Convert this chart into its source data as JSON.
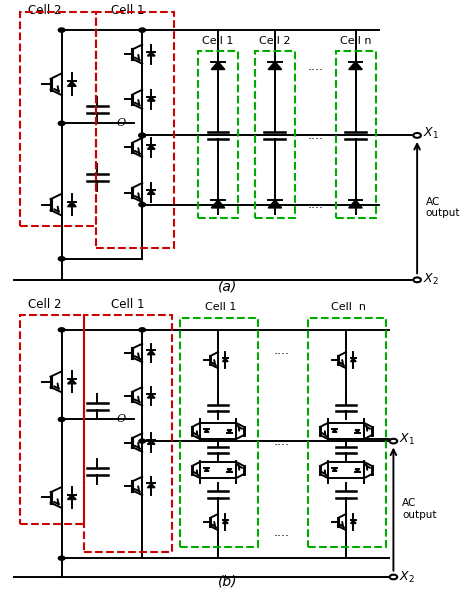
{
  "fig_width": 4.74,
  "fig_height": 5.9,
  "dpi": 100,
  "bg_color": "#ffffff",
  "line_color": "#000000",
  "red_color": "#cc0000",
  "green_color": "#00aa00",
  "label_a": "(a)",
  "label_b": "(b)",
  "x1_label": "X₁",
  "x2_label": "X₂",
  "ac_label": "AC\noutput",
  "o_label": "O"
}
